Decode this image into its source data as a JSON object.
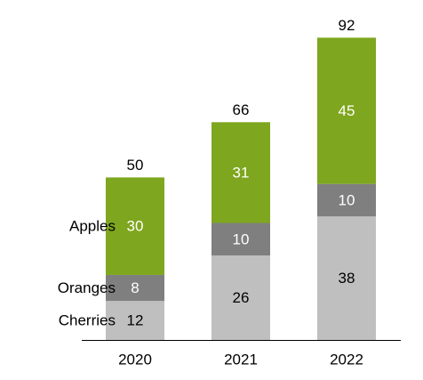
{
  "chart_data": {
    "type": "bar",
    "stacked": true,
    "categories": [
      "2020",
      "2021",
      "2022"
    ],
    "series": [
      {
        "name": "Cherries",
        "values": [
          12,
          26,
          38
        ],
        "color": "#BFBFBF",
        "label_color": "#000000"
      },
      {
        "name": "Oranges",
        "values": [
          8,
          10,
          10
        ],
        "color": "#7F7F7F",
        "label_color": "#FFFFFF"
      },
      {
        "name": "Apples",
        "values": [
          30,
          31,
          45
        ],
        "color": "#7EA61E",
        "label_color": "#FFFFFF"
      }
    ],
    "totals": [
      50,
      66,
      92
    ],
    "title": "",
    "xlabel": "",
    "ylabel": "",
    "ylim": [
      0,
      92
    ],
    "grid": false,
    "legend": "left, aligned with first bar segments",
    "axis_line_color": "#000000"
  }
}
